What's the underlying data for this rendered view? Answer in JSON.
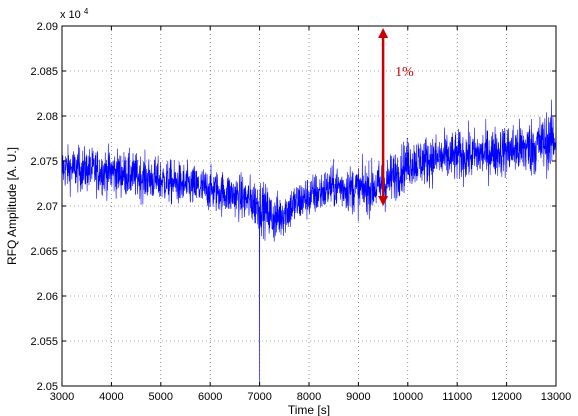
{
  "chart_data": {
    "type": "line",
    "title": "",
    "xlabel": "Time [s]",
    "ylabel": "RFQ Amplitude [A. U.]",
    "y_exponent_label": "x 10",
    "y_exponent_power": "4",
    "xlim": [
      3000,
      13000
    ],
    "ylim": [
      2.05,
      2.09
    ],
    "grid": true,
    "x_ticks": [
      3000,
      4000,
      5000,
      6000,
      7000,
      8000,
      9000,
      10000,
      11000,
      12000,
      13000
    ],
    "x_tick_labels": [
      "3000",
      "4000",
      "5000",
      "6000",
      "7000",
      "8000",
      "9000",
      "10000",
      "11000",
      "12000",
      "13000"
    ],
    "y_ticks": [
      2.05,
      2.055,
      2.06,
      2.065,
      2.07,
      2.075,
      2.08,
      2.085,
      2.09
    ],
    "y_tick_labels": [
      "2.05",
      "2.055",
      "2.06",
      "2.065",
      "2.07",
      "2.075",
      "2.08",
      "2.085",
      "2.09"
    ],
    "line_color": "#0000ff",
    "annotation": {
      "text": "1%",
      "color": "#cc0000",
      "arrow_x": 9500,
      "arrow_y_from": 2.07,
      "arrow_y_to": 2.09
    },
    "trend": {
      "x": [
        3000,
        4000,
        5000,
        6000,
        6500,
        7000,
        7300,
        7800,
        8500,
        9000,
        9500,
        10000,
        10500,
        11000,
        11500,
        12000,
        12500,
        13000
      ],
      "mean": [
        2.0742,
        2.0738,
        2.0728,
        2.0718,
        2.0712,
        2.0702,
        2.0685,
        2.0705,
        2.0722,
        2.0718,
        2.0722,
        2.0748,
        2.0752,
        2.0755,
        2.0758,
        2.0762,
        2.0765,
        2.0775
      ],
      "amplitude": [
        0.0035,
        0.0038,
        0.0036,
        0.0035,
        0.0035,
        0.0042,
        0.004,
        0.0036,
        0.0035,
        0.004,
        0.0042,
        0.004,
        0.004,
        0.0042,
        0.004,
        0.0043,
        0.0048,
        0.005
      ]
    },
    "spike": {
      "x": 7000,
      "y": 2.05
    }
  }
}
